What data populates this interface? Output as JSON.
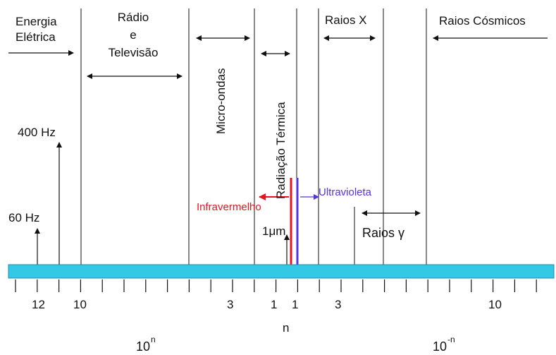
{
  "regions": {
    "energia_line1": "Energia",
    "energia_line2": "Elétrica",
    "radio_line1": "Rádio",
    "radio_line2": "e",
    "radio_line3": "Televisão",
    "micro": "Micro-ondas",
    "termica": "Radiação Térmica",
    "raios_x": "Raios X",
    "cosmicos": "Raios Cósmicos",
    "gama": "Raios γ",
    "infra": "Infravermelho",
    "ultra": "Ultravioleta",
    "micron": "1μm"
  },
  "frequencies": {
    "f400": "400 Hz",
    "f60": "60 Hz"
  },
  "scale": {
    "ticks": [
      "12",
      "10",
      "3",
      "1",
      "1",
      "3",
      "10"
    ],
    "n_label": "n",
    "base_left": "10",
    "exp_left": "n",
    "base_right": "10",
    "exp_right": "-n"
  },
  "colors": {
    "bar": "#33c8e6",
    "infrared": "#e8141b",
    "ultraviolet": "#5533dd"
  }
}
